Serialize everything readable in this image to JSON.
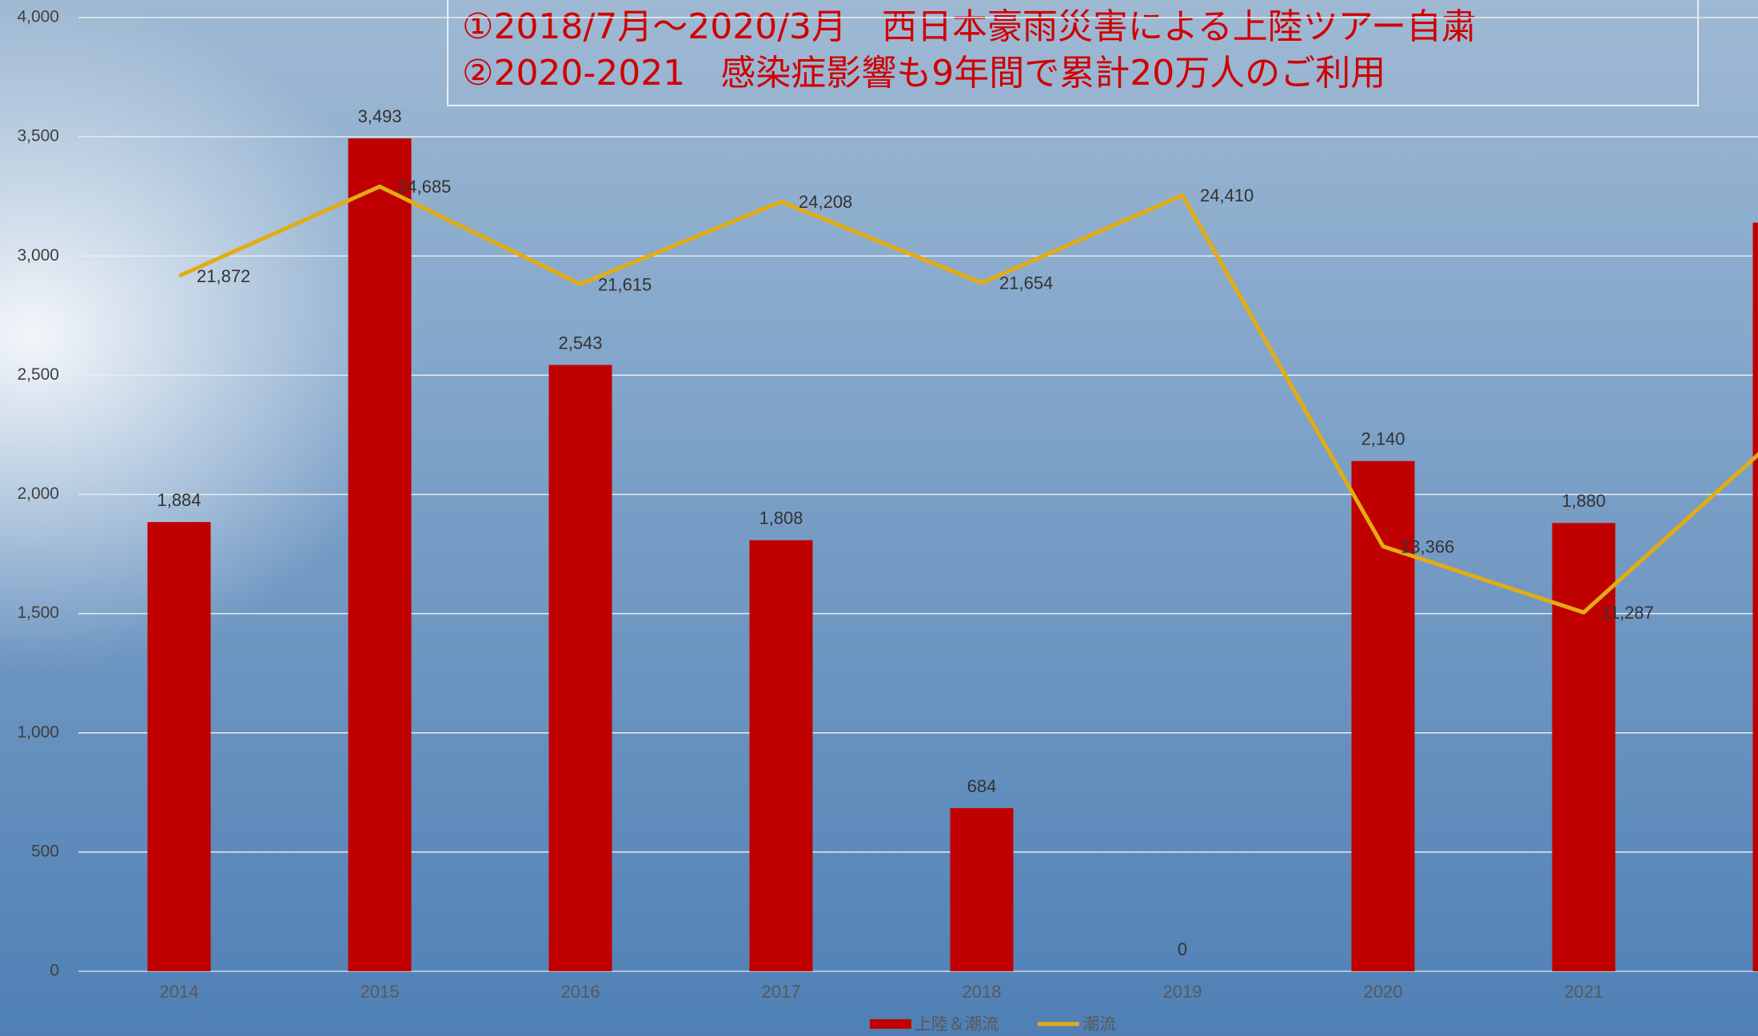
{
  "chart_data": {
    "type": "bar_line",
    "annotations": [
      "①2018/7月～2020/3月　西日本豪雨災害による上陸ツアー自粛",
      "②2020-2021　感染症影響も9年間で累計20万人のご利用"
    ],
    "categories": [
      "2014",
      "2015",
      "2016",
      "2017",
      "2018",
      "2019",
      "2020",
      "2021",
      null
    ],
    "series": [
      {
        "name": "上陸＆潮流",
        "type": "bar",
        "color": "#c00000",
        "values": [
          1884,
          3493,
          2543,
          1808,
          684,
          0,
          2140,
          1880,
          3140
        ],
        "value_labels": [
          "1,884",
          "3,493",
          "2,543",
          "1,808",
          "684",
          "0",
          "2,140",
          "1,880",
          null
        ]
      },
      {
        "name": "潮流",
        "type": "line",
        "axis": "y2",
        "color": "#e3ac12",
        "values": [
          21872,
          24685,
          21615,
          24208,
          21654,
          24410,
          13366,
          11287,
          17000
        ],
        "value_labels": [
          "21,872",
          "24,685",
          "21,615",
          "24,208",
          "21,654",
          "24,410",
          "13,366",
          "11,287",
          null
        ]
      }
    ],
    "ylim": [
      0,
      4000
    ],
    "yticks": [
      0,
      500,
      {
        "value": 1000,
        "label": "1,000"
      },
      {
        "value": 1500,
        "label": "1,500"
      },
      {
        "value": 2000,
        "label": "2,000"
      },
      {
        "value": 2500,
        "label": "2,500"
      },
      {
        "value": 3000,
        "label": "3,000"
      },
      {
        "value": 3500,
        "label": "3,500"
      },
      {
        "value": 4000,
        "label": "4,000"
      }
    ],
    "y2lim": [
      0,
      30000
    ],
    "grid": true,
    "legend": "bottom"
  }
}
